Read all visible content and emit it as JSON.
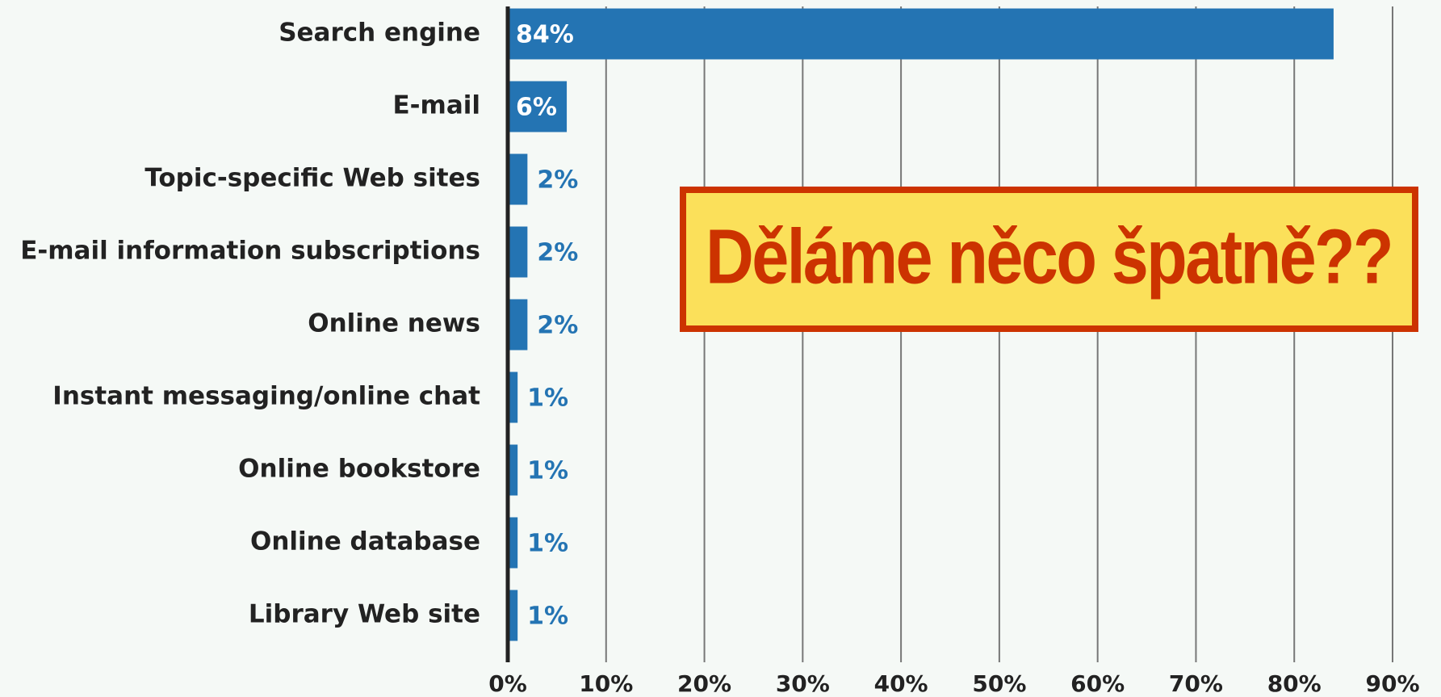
{
  "chart_data": {
    "type": "bar",
    "orientation": "horizontal",
    "categories": [
      "Search engine",
      "E-mail",
      "Topic-specific Web sites",
      "E-mail information subscriptions",
      "Online news",
      "Instant messaging/online chat",
      "Online bookstore",
      "Online database",
      "Library Web site"
    ],
    "values": [
      84,
      6,
      2,
      2,
      2,
      1,
      1,
      1,
      1
    ],
    "value_labels": [
      "84%",
      "6%",
      "2%",
      "2%",
      "2%",
      "1%",
      "1%",
      "1%",
      "1%"
    ],
    "color": "#2474b3",
    "xlim": [
      0,
      90
    ],
    "xticks": [
      {
        "value": 0,
        "label": "0%"
      },
      {
        "value": 10,
        "label": "10%"
      },
      {
        "value": 20,
        "label": "20%"
      },
      {
        "value": 30,
        "label": "30%"
      },
      {
        "value": 40,
        "label": "40%"
      },
      {
        "value": 50,
        "label": "50%"
      },
      {
        "value": 60,
        "label": "60%"
      },
      {
        "value": 70,
        "label": "70%"
      },
      {
        "value": 80,
        "label": "80%"
      },
      {
        "value": 90,
        "label": "90%"
      }
    ],
    "grid": true,
    "annotation": "Děláme něco špatně??"
  }
}
